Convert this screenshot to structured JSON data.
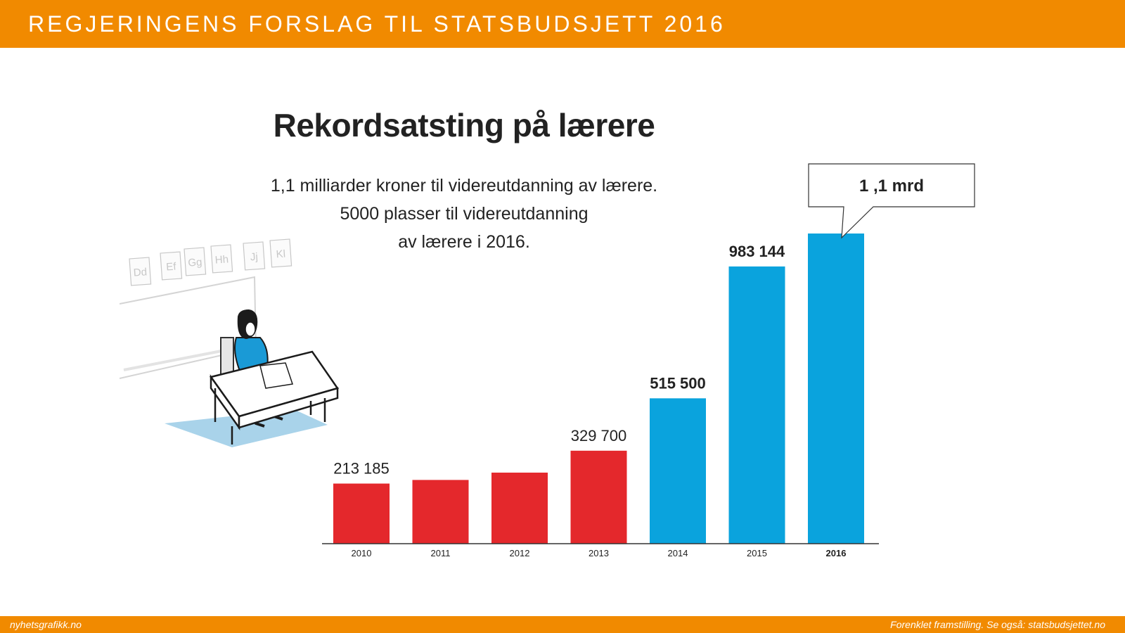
{
  "header": {
    "title": "REGJERINGENS FORSLAG TIL STATSBUDSJETT 2016"
  },
  "headline": "Rekordsatsting på lærere",
  "subtitle_lines": [
    "1,1 milliarder kroner til videreutdanning av lærere.",
    "5000 plasser til  videreutdanning",
    "av lærere i 2016."
  ],
  "illustration": {
    "letter_cards": [
      "Dd",
      "Ef",
      "Gg",
      "Hh",
      "Jj",
      "Kl"
    ]
  },
  "chart_data": {
    "type": "bar",
    "title": "Rekordsatsting på lærere",
    "categories": [
      "2010",
      "2011",
      "2012",
      "2013",
      "2014",
      "2015",
      "2016"
    ],
    "values": [
      213185,
      226000,
      252000,
      329700,
      515500,
      983144,
      1100000
    ],
    "bar_colors": [
      "#e4282c",
      "#e4282c",
      "#e4282c",
      "#e4282c",
      "#0aa3dd",
      "#0aa3dd",
      "#0aa3dd"
    ],
    "data_labels": [
      "213 185",
      "",
      "",
      "329 700",
      "515 500",
      "983 144",
      ""
    ],
    "callout_label": "1 ,1 mrd",
    "highlighted_category": "2016",
    "xlabel": "",
    "ylabel": "",
    "ylim": [
      0,
      1100000
    ],
    "grid": false,
    "legend": "none"
  },
  "footer": {
    "left": "nyhetsgrafikk.no",
    "right": "Forenklet framstilling. Se også: statsbudsjettet.no"
  }
}
